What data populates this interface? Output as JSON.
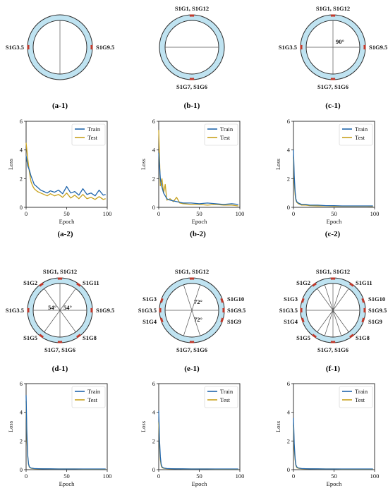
{
  "colors": {
    "ring": "#bfe3f1",
    "ring_edge": "#2c2c2c",
    "sensor": "#c0392b",
    "train": "#2166ac",
    "test": "#c8a21e",
    "axis": "#222222"
  },
  "rings": [
    {
      "caption_main": "a",
      "caption_sub": "-1",
      "lines": [
        0
      ],
      "sensors": [
        90,
        270
      ],
      "labels": [
        {
          "text": "S1G3.5",
          "side": "left"
        },
        {
          "text": "S1G9.5",
          "side": "right"
        }
      ],
      "angles": []
    },
    {
      "caption_main": "b",
      "caption_sub": "-1",
      "lines": [
        90
      ],
      "sensors": [
        0,
        180
      ],
      "labels": [
        {
          "text": "S1G1, S1G12",
          "side": "top"
        },
        {
          "text": "S1G7, S1G6",
          "side": "bottom"
        }
      ],
      "angles": []
    },
    {
      "caption_main": "c",
      "caption_sub": "-1",
      "lines": [
        0,
        90
      ],
      "sensors": [
        0,
        90,
        180,
        270
      ],
      "labels": [
        {
          "text": "S1G1, S1G12",
          "side": "top"
        },
        {
          "text": "S1G7, S1G6",
          "side": "bottom"
        },
        {
          "text": "S1G3.5",
          "side": "left"
        },
        {
          "text": "S1G9.5",
          "side": "right"
        }
      ],
      "angles": [
        {
          "text": "90°",
          "pos": "ne"
        }
      ]
    },
    {
      "caption_main": "d",
      "caption_sub": "-1",
      "lines": [
        0,
        90,
        36,
        144
      ],
      "sensors": [
        0,
        36,
        90,
        144,
        180,
        216,
        270,
        324
      ],
      "labels": [
        {
          "text": "S1G1, S1G12",
          "side": "top"
        },
        {
          "text": "S1G7, S1G6",
          "side": "bottom"
        },
        {
          "text": "S1G3.5",
          "side": "left"
        },
        {
          "text": "S1G9.5",
          "side": "right"
        },
        {
          "text": "S1G2",
          "side": "ul"
        },
        {
          "text": "S1G11",
          "side": "ur"
        },
        {
          "text": "S1G5",
          "side": "ll"
        },
        {
          "text": "S1G8",
          "side": "lr"
        }
      ],
      "angles": [
        {
          "text": "54°",
          "pos": "w"
        },
        {
          "text": "54°",
          "pos": "e"
        }
      ]
    },
    {
      "caption_main": "e",
      "caption_sub": "-1",
      "lines": [
        90,
        18,
        162
      ],
      "sensors": [
        0,
        72,
        90,
        108,
        180,
        252,
        270,
        288
      ],
      "labels": [
        {
          "text": "S1G1, S1G12",
          "side": "top"
        },
        {
          "text": "S1G7, S1G6",
          "side": "bottom"
        },
        {
          "text": "S1G3",
          "side": "l1"
        },
        {
          "text": "S1G3.5",
          "side": "l2"
        },
        {
          "text": "S1G4",
          "side": "l3"
        },
        {
          "text": "S1G10",
          "side": "r1"
        },
        {
          "text": "S1G9.5",
          "side": "r2"
        },
        {
          "text": "S1G9",
          "side": "r3"
        }
      ],
      "angles": [
        {
          "text": "72°",
          "pos": "n"
        },
        {
          "text": "72°",
          "pos": "s"
        }
      ]
    },
    {
      "caption_main": "f",
      "caption_sub": "-1",
      "lines": [
        0,
        90,
        18,
        36,
        144,
        162
      ],
      "sensors": [
        0,
        36,
        72,
        90,
        108,
        144,
        180,
        216,
        252,
        270,
        288,
        324
      ],
      "labels": [
        {
          "text": "S1G1, S1G12",
          "side": "top"
        },
        {
          "text": "S1G7, S1G6",
          "side": "bottom"
        },
        {
          "text": "S1G2",
          "side": "ul"
        },
        {
          "text": "S1G11",
          "side": "ur"
        },
        {
          "text": "S1G3",
          "side": "l1"
        },
        {
          "text": "S1G3.5",
          "side": "l2"
        },
        {
          "text": "S1G4",
          "side": "l3"
        },
        {
          "text": "S1G10",
          "side": "r1"
        },
        {
          "text": "S1G9.5",
          "side": "r2"
        },
        {
          "text": "S1G9",
          "side": "r3"
        },
        {
          "text": "S1G5",
          "side": "ll"
        },
        {
          "text": "S1G8",
          "side": "lr"
        }
      ],
      "angles": []
    }
  ],
  "chart_data": [
    {
      "type": "line",
      "caption_main": "a",
      "caption_sub": "-2",
      "xlabel": "Epoch",
      "ylabel": "Loss",
      "xlim": [
        0,
        100
      ],
      "ylim": [
        0,
        6
      ],
      "xticks": [
        0,
        50,
        100
      ],
      "yticks": [
        0,
        2,
        4,
        6
      ],
      "legend": "top-right",
      "series": [
        {
          "name": "Train",
          "x": [
            0,
            2,
            4,
            6,
            8,
            10,
            14,
            18,
            22,
            26,
            30,
            35,
            40,
            45,
            50,
            55,
            60,
            65,
            70,
            75,
            80,
            85,
            90,
            95,
            98
          ],
          "y": [
            3.6,
            2.9,
            2.6,
            2.2,
            1.9,
            1.6,
            1.4,
            1.2,
            1.1,
            1.0,
            1.15,
            1.05,
            1.2,
            0.95,
            1.45,
            1.0,
            1.1,
            0.85,
            1.3,
            0.9,
            1.0,
            0.8,
            1.2,
            0.85,
            0.9
          ]
        },
        {
          "name": "Test",
          "x": [
            0,
            2,
            4,
            6,
            8,
            10,
            14,
            18,
            22,
            26,
            30,
            35,
            40,
            45,
            50,
            55,
            60,
            65,
            70,
            75,
            80,
            85,
            90,
            95,
            98
          ],
          "y": [
            4.5,
            3.4,
            2.5,
            1.8,
            1.5,
            1.3,
            1.1,
            1.0,
            0.9,
            0.8,
            0.95,
            0.8,
            0.9,
            0.7,
            1.0,
            0.65,
            0.85,
            0.6,
            0.9,
            0.6,
            0.7,
            0.55,
            0.75,
            0.55,
            0.6
          ]
        }
      ]
    },
    {
      "type": "line",
      "caption_main": "b",
      "caption_sub": "-2",
      "xlabel": "Epoch",
      "ylabel": "Loss",
      "xlim": [
        0,
        100
      ],
      "ylim": [
        0,
        6
      ],
      "xticks": [
        0,
        50,
        100
      ],
      "yticks": [
        0,
        2,
        4,
        6
      ],
      "legend": "top-right",
      "series": [
        {
          "name": "Train",
          "x": [
            0,
            2,
            4,
            6,
            8,
            10,
            14,
            18,
            22,
            26,
            30,
            40,
            50,
            60,
            70,
            80,
            90,
            98
          ],
          "y": [
            3.8,
            2.0,
            1.4,
            1.0,
            0.8,
            0.6,
            0.5,
            0.45,
            0.4,
            0.35,
            0.3,
            0.3,
            0.25,
            0.3,
            0.25,
            0.2,
            0.25,
            0.2
          ]
        },
        {
          "name": "Test",
          "x": [
            0,
            2,
            4,
            6,
            8,
            10,
            14,
            18,
            22,
            26,
            30,
            40,
            50,
            60,
            70,
            80,
            90,
            98
          ],
          "y": [
            5.4,
            1.5,
            2.0,
            1.0,
            1.6,
            0.5,
            0.6,
            0.4,
            0.7,
            0.3,
            0.25,
            0.2,
            0.2,
            0.15,
            0.2,
            0.15,
            0.15,
            0.1
          ]
        }
      ]
    },
    {
      "type": "line",
      "caption_main": "c",
      "caption_sub": "-2",
      "xlabel": "Epoch",
      "ylabel": "Loss",
      "xlim": [
        0,
        100
      ],
      "ylim": [
        0,
        6
      ],
      "xticks": [
        0,
        50,
        100
      ],
      "yticks": [
        0,
        2,
        4,
        6
      ],
      "legend": "top-right",
      "series": [
        {
          "name": "Train",
          "x": [
            0,
            1,
            2,
            3,
            4,
            6,
            8,
            10,
            15,
            20,
            30,
            40,
            50,
            60,
            70,
            80,
            90,
            98
          ],
          "y": [
            4.0,
            2.2,
            1.1,
            0.6,
            0.4,
            0.3,
            0.25,
            0.2,
            0.2,
            0.15,
            0.15,
            0.12,
            0.12,
            0.1,
            0.1,
            0.1,
            0.1,
            0.1
          ]
        },
        {
          "name": "Test",
          "x": [
            0,
            1,
            2,
            3,
            4,
            6,
            8,
            10,
            15,
            20,
            30,
            40,
            50,
            60,
            70,
            80,
            90,
            98
          ],
          "y": [
            3.5,
            1.8,
            0.9,
            0.5,
            0.35,
            0.25,
            0.2,
            0.15,
            0.15,
            0.12,
            0.1,
            0.1,
            0.08,
            0.08,
            0.08,
            0.08,
            0.08,
            0.07
          ]
        }
      ]
    },
    {
      "type": "line",
      "caption_main": "d",
      "caption_sub": "-2",
      "xlabel": "Epoch",
      "ylabel": "Loss",
      "xlim": [
        0,
        100
      ],
      "ylim": [
        0,
        6
      ],
      "xticks": [
        0,
        50,
        100
      ],
      "yticks": [
        0,
        2,
        4,
        6
      ],
      "legend": "top-right",
      "series": [
        {
          "name": "Train",
          "x": [
            0,
            1,
            2,
            3,
            4,
            6,
            8,
            10,
            15,
            20,
            30,
            40,
            50,
            60,
            70,
            80,
            90,
            98
          ],
          "y": [
            5.2,
            2.5,
            1.0,
            0.4,
            0.2,
            0.12,
            0.1,
            0.08,
            0.07,
            0.06,
            0.06,
            0.05,
            0.05,
            0.05,
            0.05,
            0.05,
            0.05,
            0.05
          ]
        },
        {
          "name": "Test",
          "x": [
            0,
            1,
            2,
            3,
            4,
            6,
            8,
            10,
            15,
            20,
            30,
            40,
            50,
            60,
            70,
            80,
            90,
            98
          ],
          "y": [
            4.8,
            2.2,
            0.9,
            0.35,
            0.18,
            0.1,
            0.08,
            0.07,
            0.06,
            0.06,
            0.05,
            0.05,
            0.05,
            0.05,
            0.04,
            0.04,
            0.04,
            0.04
          ]
        }
      ]
    },
    {
      "type": "line",
      "caption_main": "e",
      "caption_sub": "-2",
      "xlabel": "Epoch",
      "ylabel": "Loss",
      "xlim": [
        0,
        100
      ],
      "ylim": [
        0,
        6
      ],
      "xticks": [
        0,
        50,
        100
      ],
      "yticks": [
        0,
        2,
        4,
        6
      ],
      "legend": "top-right",
      "series": [
        {
          "name": "Train",
          "x": [
            0,
            1,
            2,
            3,
            4,
            6,
            8,
            10,
            15,
            20,
            30,
            40,
            50,
            60,
            70,
            80,
            90,
            98
          ],
          "y": [
            4.1,
            2.0,
            0.9,
            0.4,
            0.2,
            0.12,
            0.1,
            0.08,
            0.07,
            0.06,
            0.06,
            0.05,
            0.05,
            0.05,
            0.05,
            0.05,
            0.05,
            0.05
          ]
        },
        {
          "name": "Test",
          "x": [
            0,
            1,
            2,
            3,
            4,
            6,
            8,
            10,
            15,
            20,
            30,
            40,
            50,
            60,
            70,
            80,
            90,
            98
          ],
          "y": [
            3.3,
            1.6,
            0.7,
            0.3,
            0.15,
            0.1,
            0.08,
            0.07,
            0.06,
            0.06,
            0.05,
            0.05,
            0.05,
            0.05,
            0.04,
            0.04,
            0.04,
            0.04
          ]
        }
      ]
    },
    {
      "type": "line",
      "caption_main": "f",
      "caption_sub": "-2",
      "xlabel": "Epoch",
      "ylabel": "Loss",
      "xlim": [
        0,
        100
      ],
      "ylim": [
        0,
        6
      ],
      "xticks": [
        0,
        50,
        100
      ],
      "yticks": [
        0,
        2,
        4,
        6
      ],
      "legend": "top-right",
      "series": [
        {
          "name": "Train",
          "x": [
            0,
            1,
            2,
            3,
            4,
            6,
            8,
            10,
            15,
            20,
            30,
            40,
            50,
            60,
            70,
            80,
            90,
            98
          ],
          "y": [
            3.6,
            1.8,
            0.8,
            0.35,
            0.2,
            0.12,
            0.1,
            0.08,
            0.07,
            0.06,
            0.06,
            0.05,
            0.05,
            0.05,
            0.05,
            0.05,
            0.05,
            0.05
          ]
        },
        {
          "name": "Test",
          "x": [
            0,
            1,
            2,
            3,
            4,
            6,
            8,
            10,
            15,
            20,
            30,
            40,
            50,
            60,
            70,
            80,
            90,
            98
          ],
          "y": [
            3.1,
            1.5,
            0.7,
            0.3,
            0.15,
            0.1,
            0.08,
            0.07,
            0.06,
            0.06,
            0.05,
            0.05,
            0.05,
            0.04,
            0.04,
            0.04,
            0.04,
            0.04
          ]
        }
      ]
    }
  ]
}
